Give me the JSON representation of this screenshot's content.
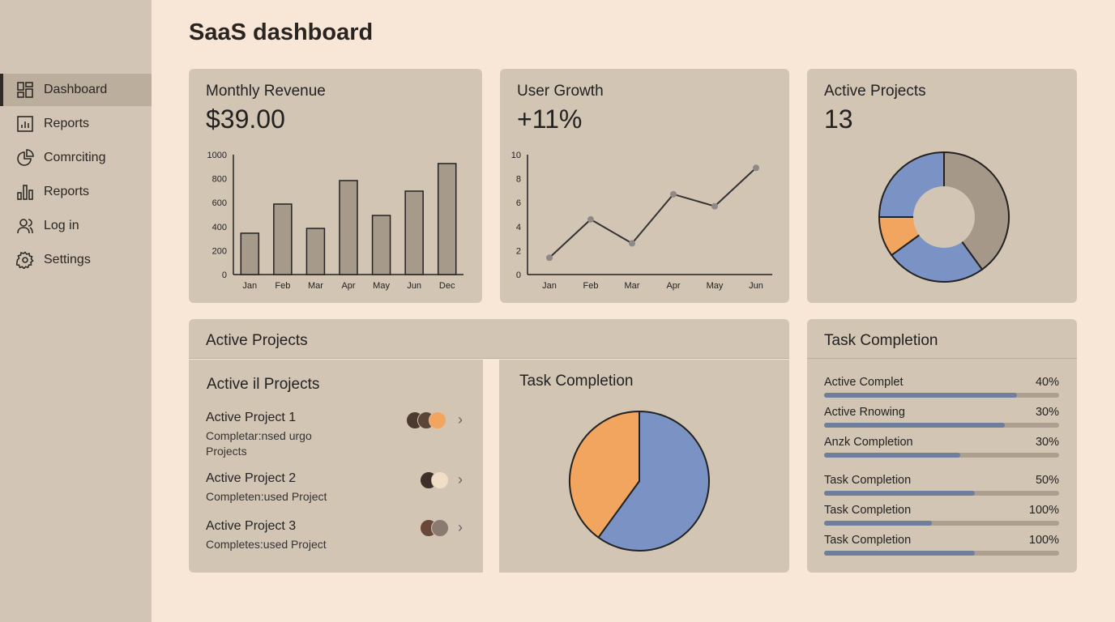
{
  "title": "SaaS dashboard",
  "sidebar": {
    "items": [
      {
        "label": "Dashboard",
        "icon": "dashboard-icon",
        "active": true
      },
      {
        "label": "Reports",
        "icon": "report-chart-icon"
      },
      {
        "label": "Comrciting",
        "icon": "pie-chart-icon"
      },
      {
        "label": "Reports",
        "icon": "bar-chart-icon"
      },
      {
        "label": "Log in",
        "icon": "users-icon"
      },
      {
        "label": "Settings",
        "icon": "gear-icon"
      }
    ]
  },
  "revenue": {
    "title": "Monthly Revenue",
    "value": "$39.00"
  },
  "growth": {
    "title": "User Growth",
    "value": "+11%"
  },
  "active": {
    "title": "Active Projects",
    "value": "13"
  },
  "projects": {
    "header": "Active Projects",
    "subtitle": "Active il Projects",
    "items": [
      {
        "name": "Active Project 1",
        "desc": "Completar:nsed urgo Projects"
      },
      {
        "name": "Active Project 2",
        "desc": "Completen:used Project"
      },
      {
        "name": "Active Project 3",
        "desc": "Completes:used Project"
      }
    ]
  },
  "taskpie": {
    "title": "Task Completion"
  },
  "tasks": {
    "title": "Task Completion",
    "items": [
      {
        "label": "Active Complet",
        "pct": "40%",
        "fill": 0.82
      },
      {
        "label": "Active Rnowing",
        "pct": "30%",
        "fill": 0.77
      },
      {
        "label": "Anzk Completion",
        "pct": "30%",
        "fill": 0.58
      },
      {
        "label": "Task Completion",
        "pct": "50%",
        "fill": 0.64
      },
      {
        "label": "Task Completion",
        "pct": "100%",
        "fill": 0.46
      },
      {
        "label": "Task Completion",
        "pct": "100%",
        "fill": 0.64
      }
    ]
  },
  "colors": {
    "blue": "#7b93c4",
    "orange": "#f2a55e",
    "gray": "#a59888",
    "bar": "#a69a8b"
  },
  "chart_data": [
    {
      "type": "bar",
      "categories": [
        "Jan",
        "Feb",
        "Mar",
        "Apr",
        "May",
        "Jun",
        "Dec"
      ],
      "values": [
        345,
        588,
        385,
        784,
        493,
        696,
        926
      ],
      "ylim": [
        0,
        1000
      ],
      "yticks": [
        "0",
        "200",
        "400",
        "600",
        "800",
        "1000"
      ]
    },
    {
      "type": "line",
      "categories": [
        "Jan",
        "Feb",
        "Mar",
        "Apr",
        "May",
        "Jun"
      ],
      "values": [
        1.4,
        4.6,
        2.6,
        6.7,
        5.7,
        8.9
      ],
      "ylim": [
        0,
        10
      ],
      "yticks": [
        "0",
        "2",
        "4",
        "6",
        "8",
        "10"
      ]
    },
    {
      "type": "pie",
      "variant": "donut",
      "values": [
        40,
        25,
        10,
        25
      ],
      "colors": [
        "#a59888",
        "#7b93c4",
        "#f2a55e",
        "#7b93c4"
      ]
    },
    {
      "type": "pie",
      "values": [
        60,
        40
      ],
      "colors": [
        "#7b93c4",
        "#f2a55e"
      ]
    }
  ]
}
